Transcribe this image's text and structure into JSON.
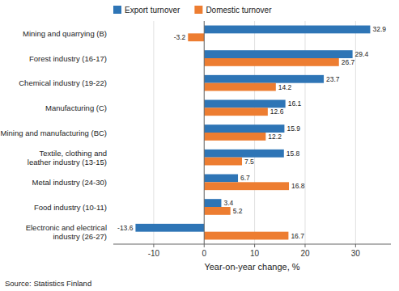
{
  "chart_data": {
    "type": "bar",
    "orientation": "horizontal",
    "categories": [
      "Mining and quarrying (B)",
      "Forest industry (16-17)",
      "Chemical industry (19-22)",
      "Manufacturing (C)",
      "Mining and manufacturing (BC)",
      "Textile, clothing and\nleather industry (13-15)",
      "Metal industry (24-30)",
      "Food industry (10-11)",
      "Electronic and electrical\nindustry (26-27)"
    ],
    "series": [
      {
        "name": "Export turnover",
        "color": "#2e75b6",
        "values": [
          32.9,
          29.4,
          23.7,
          16.1,
          15.9,
          15.8,
          6.7,
          3.4,
          -13.6
        ]
      },
      {
        "name": "Domestic turnover",
        "color": "#ed7d31",
        "values": [
          -3.2,
          26.7,
          14.2,
          12.6,
          12.2,
          7.5,
          16.8,
          5.2,
          16.7
        ]
      }
    ],
    "xlabel": "Year-on-year change, %",
    "source": "Source: Statistics Finland",
    "xlim": [
      -18,
      37
    ],
    "xticks": [
      -10,
      0,
      10,
      20,
      30
    ],
    "grid": true,
    "legend": "top",
    "data_labels": true
  }
}
